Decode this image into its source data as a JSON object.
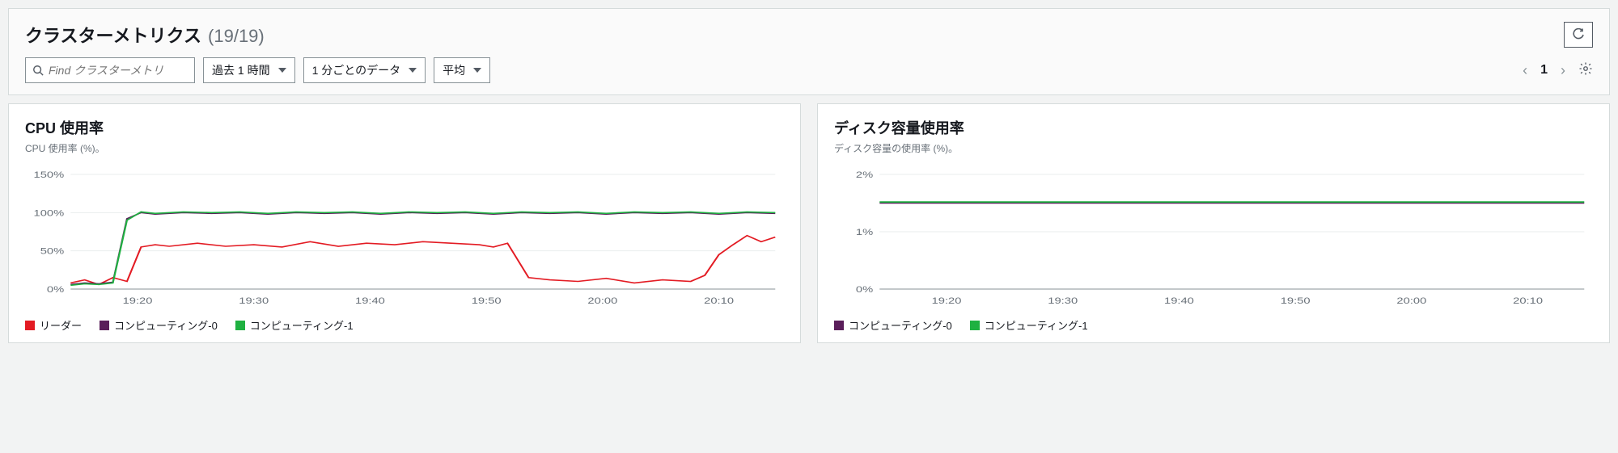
{
  "header": {
    "title": "クラスターメトリクス",
    "count": "(19/19)"
  },
  "toolbar": {
    "search_placeholder": "Find クラスターメトリ",
    "time_range": "過去 1 時間",
    "period": "1 分ごとのデータ",
    "statistic": "平均",
    "page_number": "1"
  },
  "charts": [
    {
      "title": "CPU 使用率",
      "subtitle": "CPU 使用率 (%)。",
      "type": "line",
      "ylim": [
        0,
        150
      ],
      "yticks": [
        0,
        50,
        100,
        150
      ],
      "ytick_labels": [
        "0%",
        "50%",
        "100%",
        "150%"
      ],
      "xtick_labels": [
        "19:20",
        "19:30",
        "19:40",
        "19:50",
        "20:00",
        "20:10"
      ],
      "xtick_positions": [
        0.095,
        0.26,
        0.425,
        0.59,
        0.755,
        0.92
      ],
      "grid_color": "#eaeded",
      "axis_color": "#879196",
      "tick_fontsize": 11,
      "tick_color": "#687078",
      "series": [
        {
          "name": "リーダー",
          "color": "#e31b23",
          "width": 1.6,
          "points": [
            [
              0,
              8
            ],
            [
              0.02,
              12
            ],
            [
              0.04,
              6
            ],
            [
              0.06,
              15
            ],
            [
              0.08,
              10
            ],
            [
              0.1,
              55
            ],
            [
              0.12,
              58
            ],
            [
              0.14,
              56
            ],
            [
              0.18,
              60
            ],
            [
              0.22,
              56
            ],
            [
              0.26,
              58
            ],
            [
              0.3,
              55
            ],
            [
              0.34,
              62
            ],
            [
              0.38,
              56
            ],
            [
              0.42,
              60
            ],
            [
              0.46,
              58
            ],
            [
              0.5,
              62
            ],
            [
              0.54,
              60
            ],
            [
              0.58,
              58
            ],
            [
              0.6,
              55
            ],
            [
              0.62,
              60
            ],
            [
              0.65,
              15
            ],
            [
              0.68,
              12
            ],
            [
              0.72,
              10
            ],
            [
              0.76,
              14
            ],
            [
              0.8,
              8
            ],
            [
              0.84,
              12
            ],
            [
              0.88,
              10
            ],
            [
              0.9,
              18
            ],
            [
              0.92,
              45
            ],
            [
              0.94,
              58
            ],
            [
              0.96,
              70
            ],
            [
              0.98,
              62
            ],
            [
              1.0,
              68
            ]
          ]
        },
        {
          "name": "コンピューティング-0",
          "color": "#5a1e5a",
          "width": 1.6,
          "points": [
            [
              0,
              6
            ],
            [
              0.02,
              8
            ],
            [
              0.04,
              7
            ],
            [
              0.06,
              9
            ],
            [
              0.08,
              92
            ],
            [
              0.1,
              100
            ],
            [
              0.12,
              98
            ],
            [
              0.16,
              100
            ],
            [
              0.2,
              99
            ],
            [
              0.24,
              100
            ],
            [
              0.28,
              98
            ],
            [
              0.32,
              100
            ],
            [
              0.36,
              99
            ],
            [
              0.4,
              100
            ],
            [
              0.44,
              98
            ],
            [
              0.48,
              100
            ],
            [
              0.52,
              99
            ],
            [
              0.56,
              100
            ],
            [
              0.6,
              98
            ],
            [
              0.64,
              100
            ],
            [
              0.68,
              99
            ],
            [
              0.72,
              100
            ],
            [
              0.76,
              98
            ],
            [
              0.8,
              100
            ],
            [
              0.84,
              99
            ],
            [
              0.88,
              100
            ],
            [
              0.92,
              98
            ],
            [
              0.96,
              100
            ],
            [
              1.0,
              99
            ]
          ]
        },
        {
          "name": "コンピューティング-1",
          "color": "#1fb141",
          "width": 1.6,
          "points": [
            [
              0,
              5
            ],
            [
              0.02,
              7
            ],
            [
              0.04,
              6
            ],
            [
              0.06,
              8
            ],
            [
              0.08,
              90
            ],
            [
              0.1,
              101
            ],
            [
              0.12,
              99
            ],
            [
              0.16,
              101
            ],
            [
              0.2,
              100
            ],
            [
              0.24,
              101
            ],
            [
              0.28,
              99
            ],
            [
              0.32,
              101
            ],
            [
              0.36,
              100
            ],
            [
              0.4,
              101
            ],
            [
              0.44,
              99
            ],
            [
              0.48,
              101
            ],
            [
              0.52,
              100
            ],
            [
              0.56,
              101
            ],
            [
              0.6,
              99
            ],
            [
              0.64,
              101
            ],
            [
              0.68,
              100
            ],
            [
              0.72,
              101
            ],
            [
              0.76,
              99
            ],
            [
              0.8,
              101
            ],
            [
              0.84,
              100
            ],
            [
              0.88,
              101
            ],
            [
              0.92,
              99
            ],
            [
              0.96,
              101
            ],
            [
              1.0,
              100
            ]
          ]
        }
      ],
      "legend": [
        {
          "label": "リーダー",
          "color": "#e31b23"
        },
        {
          "label": "コンピューティング-0",
          "color": "#5a1e5a"
        },
        {
          "label": "コンピューティング-1",
          "color": "#1fb141"
        }
      ]
    },
    {
      "title": "ディスク容量使用率",
      "subtitle": "ディスク容量の使用率 (%)。",
      "type": "line",
      "ylim": [
        0,
        2
      ],
      "yticks": [
        0,
        1,
        2
      ],
      "ytick_labels": [
        "0%",
        "1%",
        "2%"
      ],
      "xtick_labels": [
        "19:20",
        "19:30",
        "19:40",
        "19:50",
        "20:00",
        "20:10"
      ],
      "xtick_positions": [
        0.095,
        0.26,
        0.425,
        0.59,
        0.755,
        0.92
      ],
      "grid_color": "#eaeded",
      "axis_color": "#879196",
      "tick_fontsize": 11,
      "tick_color": "#687078",
      "series": [
        {
          "name": "コンピューティング-0",
          "color": "#5a1e5a",
          "width": 1.6,
          "points": [
            [
              0,
              1.5
            ],
            [
              1.0,
              1.5
            ]
          ]
        },
        {
          "name": "コンピューティング-1",
          "color": "#1fb141",
          "width": 1.8,
          "points": [
            [
              0,
              1.52
            ],
            [
              1.0,
              1.52
            ]
          ]
        }
      ],
      "legend": [
        {
          "label": "コンピューティング-0",
          "color": "#5a1e5a"
        },
        {
          "label": "コンピューティング-1",
          "color": "#1fb141"
        }
      ]
    }
  ]
}
